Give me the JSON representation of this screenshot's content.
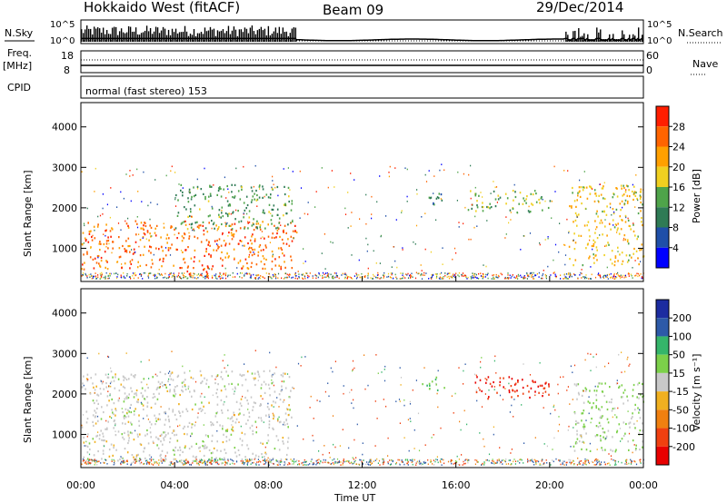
{
  "header": {
    "radar": "Hokkaido West (fitACF)",
    "beam": "Beam 09",
    "date": "29/Dec/2014"
  },
  "top_strip": {
    "nsky_label": "N.Sky",
    "nsearch_label": "N.Search",
    "left_ticks": [
      "10^5",
      "10^0"
    ],
    "right_ticks": [
      "10^5",
      "10^0"
    ]
  },
  "freq_strip": {
    "freq_label_1": "Freq.",
    "freq_label_2": "[MHz]",
    "nave_label": "Nave",
    "left_ticks": [
      "18",
      "8"
    ],
    "right_ticks": [
      "60",
      "0"
    ]
  },
  "cpid": {
    "label": "CPID",
    "value": "normal (fast stereo) 153"
  },
  "time_axis": {
    "label": "Time UT",
    "ticks": [
      "00:00",
      "04:00",
      "08:00",
      "12:00",
      "16:00",
      "20:00",
      "00:00"
    ]
  },
  "panels": {
    "power": {
      "ylabel": "Slant Range [km]",
      "yticks": [
        "1000",
        "2000",
        "3000",
        "4000"
      ],
      "colorbar_label": "Power [dB]",
      "colorbar_ticks": [
        "4",
        "8",
        "12",
        "16",
        "20",
        "24",
        "28"
      ],
      "colors": [
        "#0000ff",
        "#1f4fa8",
        "#2f7b55",
        "#4fa44a",
        "#f0d020",
        "#ffa000",
        "#ff6400",
        "#ff1e00"
      ]
    },
    "velocity": {
      "ylabel": "Slant Range [km]",
      "yticks": [
        "1000",
        "2000",
        "3000",
        "4000"
      ],
      "colorbar_label": "Velocity [m s⁻¹]",
      "colorbar_ticks": [
        "200",
        "100",
        "50",
        "15",
        "-15",
        "-50",
        "-100",
        "-200"
      ],
      "colors": [
        "#1c2ca0",
        "#2d5aa8",
        "#35b56a",
        "#7cd04a",
        "#c8c8c8",
        "#f0b020",
        "#f08010",
        "#f04010",
        "#e80000"
      ]
    }
  },
  "chart_data": [
    {
      "type": "heatmap",
      "title": "Power [dB]",
      "xlabel": "Time UT",
      "ylabel": "Slant Range [km]",
      "xlim": [
        0,
        24
      ],
      "ylim": [
        180,
        4600
      ],
      "zlim": [
        0,
        30
      ],
      "regions": [
        {
          "t0": 0.0,
          "t1": 9.2,
          "r0": 500,
          "r1": 1700,
          "value": 24
        },
        {
          "t0": 4.0,
          "t1": 9.0,
          "r0": 1500,
          "r1": 2600,
          "value": 12
        },
        {
          "t0": 4.5,
          "t1": 5.5,
          "r0": 300,
          "r1": 600,
          "value": 28
        },
        {
          "t0": 14.5,
          "t1": 15.5,
          "r0": 2100,
          "r1": 2450,
          "value": 10
        },
        {
          "t0": 16.5,
          "t1": 20.0,
          "r0": 1900,
          "r1": 2450,
          "value": 14
        },
        {
          "t0": 20.8,
          "t1": 24.0,
          "r0": 600,
          "r1": 2600,
          "value": 18
        }
      ]
    },
    {
      "type": "heatmap",
      "title": "Velocity [m s⁻¹]",
      "xlabel": "Time UT",
      "ylabel": "Slant Range [km]",
      "xlim": [
        0,
        24
      ],
      "ylim": [
        180,
        4600
      ],
      "zlim": [
        -200,
        200
      ],
      "regions": [
        {
          "t0": 0.0,
          "t1": 9.0,
          "r0": 300,
          "r1": 2600,
          "value": 0
        },
        {
          "t0": 14.5,
          "t1": 15.5,
          "r0": 2100,
          "r1": 2450,
          "value": 40
        },
        {
          "t0": 16.8,
          "t1": 20.0,
          "r0": 1900,
          "r1": 2450,
          "value": -200
        },
        {
          "t0": 21.0,
          "t1": 24.0,
          "r0": 600,
          "r1": 2300,
          "value": 20
        }
      ]
    }
  ]
}
